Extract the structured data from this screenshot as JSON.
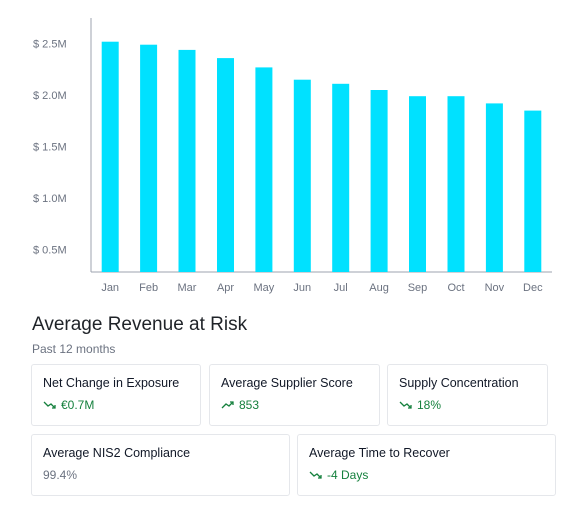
{
  "chart_data": {
    "type": "bar",
    "categories": [
      "Jan",
      "Feb",
      "Mar",
      "Apr",
      "May",
      "Jun",
      "Jul",
      "Aug",
      "Sep",
      "Oct",
      "Nov",
      "Dec"
    ],
    "values": [
      2.52,
      2.49,
      2.44,
      2.36,
      2.27,
      2.15,
      2.11,
      2.05,
      1.99,
      1.99,
      1.92,
      1.85
    ],
    "y_ticks": [
      0.5,
      1.0,
      1.5,
      2.0,
      2.5
    ],
    "y_tick_labels": [
      "$ 0.5M",
      "$ 1.0M",
      "$ 1.5M",
      "$ 2.0M",
      "$ 2.5M"
    ],
    "ylim": [
      0.28,
      2.75
    ],
    "bar_color": "#00e1ff",
    "grid": false
  },
  "summary": {
    "title": "Average Revenue at Risk",
    "subtitle": "Past 12 months"
  },
  "cards": [
    {
      "label": "Net Change in Exposure",
      "value": "€0.7M",
      "trend": "down",
      "icon": "trend-down-icon",
      "color": "#15803d"
    },
    {
      "label": "Average Supplier Score",
      "value": "853",
      "trend": "up",
      "icon": "trend-up-icon",
      "color": "#15803d"
    },
    {
      "label": "Supply Concentration",
      "value": "18%",
      "trend": "down",
      "icon": "trend-down-icon",
      "color": "#15803d"
    },
    {
      "label": "Average NIS2 Compliance",
      "value": "99.4%",
      "trend": "none",
      "icon": "",
      "color": "#6b7280"
    },
    {
      "label": "Average Time to Recover",
      "value": "-4 Days",
      "trend": "down",
      "icon": "trend-down-icon",
      "color": "#15803d"
    }
  ]
}
